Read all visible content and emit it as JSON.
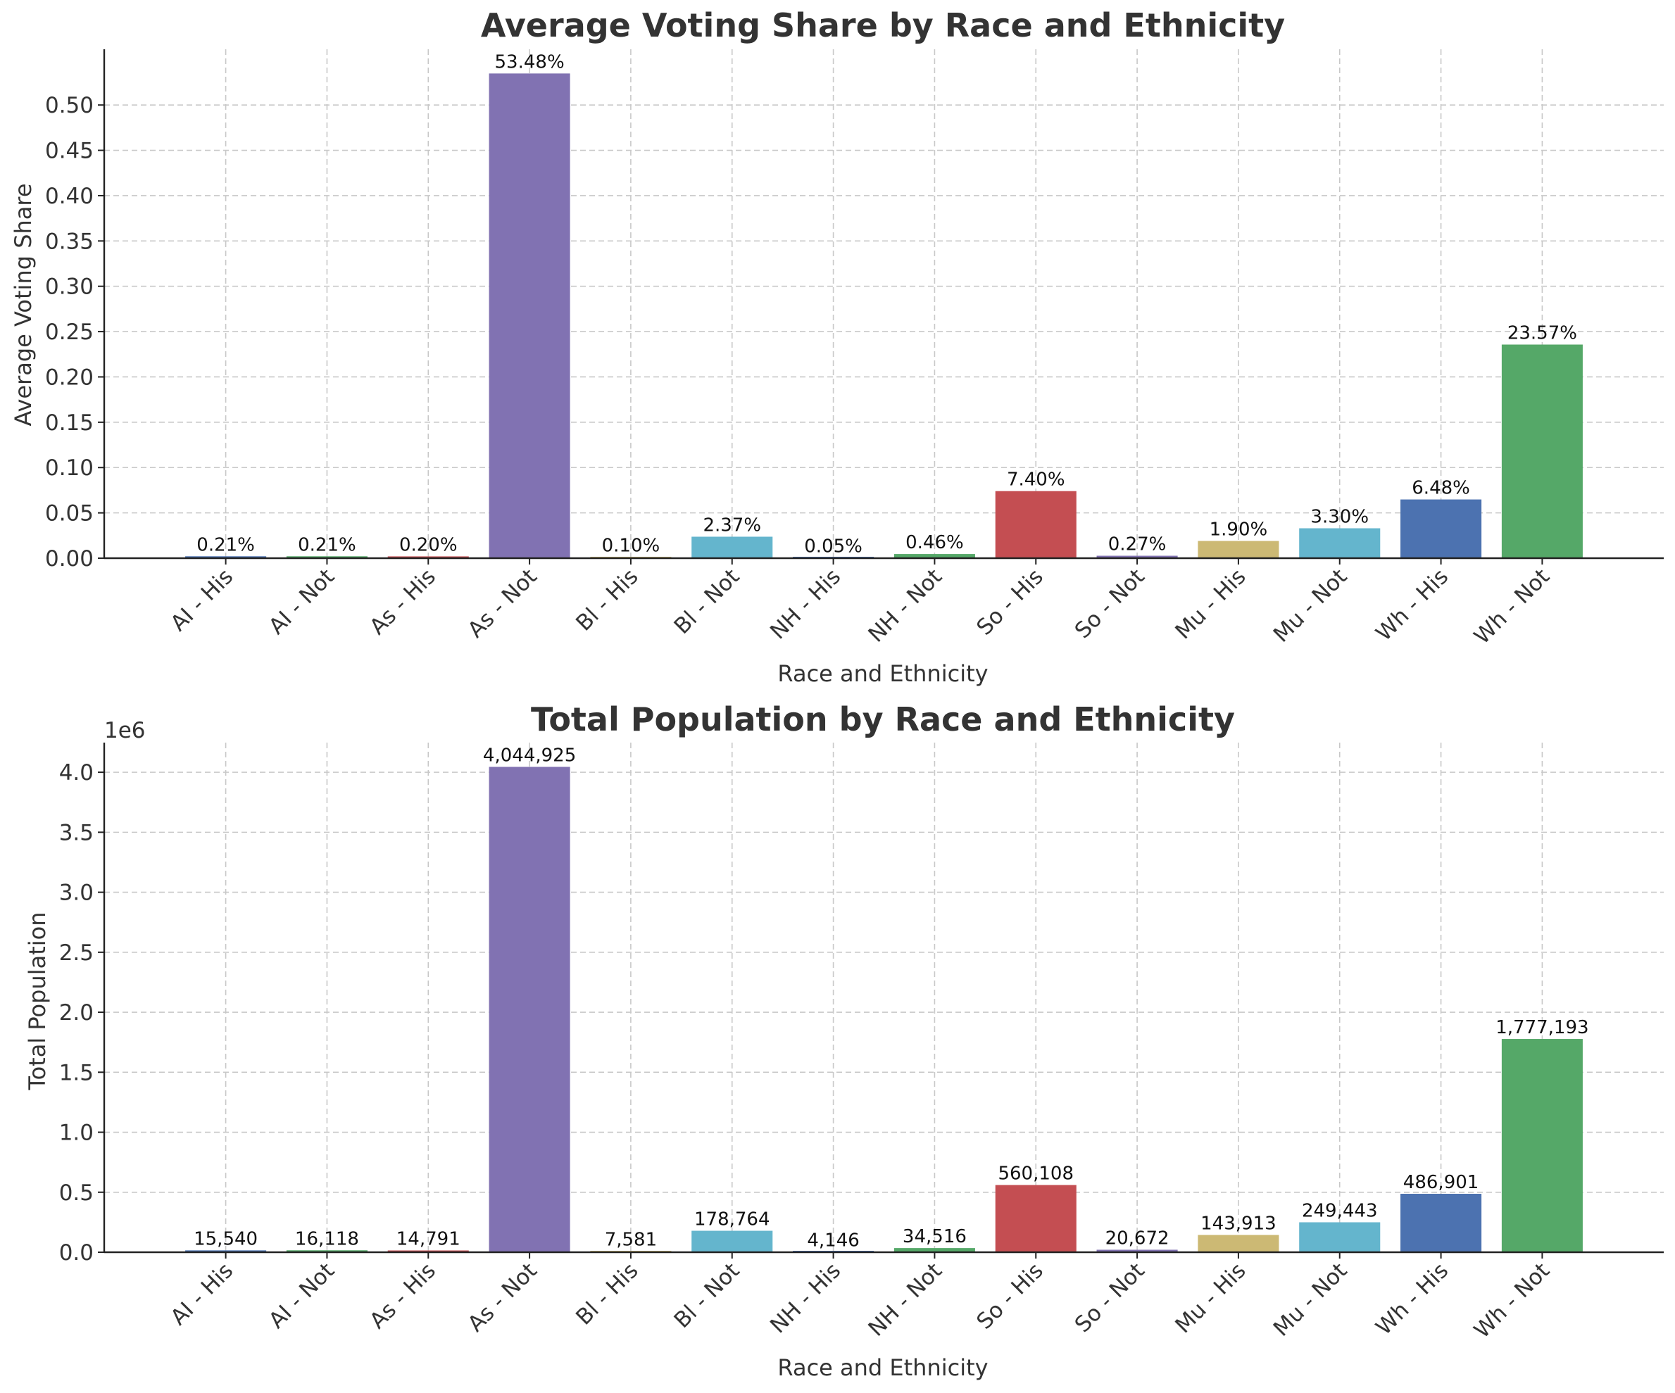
{
  "chart_data": [
    {
      "type": "bar",
      "title": "Average Voting Share by Race and Ethnicity",
      "xlabel": "Race and Ethnicity",
      "ylabel": "Average Voting Share",
      "categories": [
        "AI - His",
        "AI - Not",
        "As - His",
        "As - Not",
        "Bl - His",
        "Bl - Not",
        "NH - His",
        "NH - Not",
        "So - His",
        "So - Not",
        "Mu - His",
        "Mu - Not",
        "Wh - His",
        "Wh - Not"
      ],
      "values": [
        0.0021,
        0.0021,
        0.002,
        0.5348,
        0.001,
        0.0237,
        0.0005,
        0.0046,
        0.074,
        0.0027,
        0.019,
        0.033,
        0.0648,
        0.2357
      ],
      "data_labels": [
        "0.21%",
        "0.21%",
        "0.20%",
        "53.48%",
        "0.10%",
        "2.37%",
        "0.05%",
        "0.46%",
        "7.40%",
        "0.27%",
        "1.90%",
        "3.30%",
        "6.48%",
        "23.57%"
      ],
      "ylim": [
        0,
        0.5615
      ],
      "yticks": [
        0.0,
        0.05,
        0.1,
        0.15,
        0.2,
        0.25,
        0.3,
        0.35,
        0.4,
        0.45,
        0.5
      ],
      "ytick_labels": [
        "0.00",
        "0.05",
        "0.10",
        "0.15",
        "0.20",
        "0.25",
        "0.30",
        "0.35",
        "0.40",
        "0.45",
        "0.50"
      ],
      "grid": true
    },
    {
      "type": "bar",
      "title": "Total Population by Race and Ethnicity",
      "xlabel": "Race and Ethnicity",
      "ylabel": "Total Population",
      "y_multiplier_label": "1e6",
      "categories": [
        "AI - His",
        "AI - Not",
        "As - His",
        "As - Not",
        "Bl - His",
        "Bl - Not",
        "NH - His",
        "NH - Not",
        "So - His",
        "So - Not",
        "Mu - His",
        "Mu - Not",
        "Wh - His",
        "Wh - Not"
      ],
      "values": [
        15540,
        16118,
        14791,
        4044925,
        7581,
        178764,
        4146,
        34516,
        560108,
        20672,
        143913,
        249443,
        486901,
        1777193
      ],
      "data_labels": [
        "15,540",
        "16,118",
        "14,791",
        "4,044,925",
        "7,581",
        "178,764",
        "4,146",
        "34,516",
        "560,108",
        "20,672",
        "143,913",
        "249,443",
        "486,901",
        "1,777,193"
      ],
      "ylim": [
        0,
        4247171
      ],
      "yticks": [
        0,
        500000,
        1000000,
        1500000,
        2000000,
        2500000,
        3000000,
        3500000,
        4000000
      ],
      "ytick_labels": [
        "0.0",
        "0.5",
        "1.0",
        "1.5",
        "2.0",
        "2.5",
        "3.0",
        "3.5",
        "4.0"
      ],
      "grid": true
    }
  ],
  "colors": [
    "#4c72b0",
    "#55a868",
    "#c44e52",
    "#8172b2",
    "#ccb974",
    "#64b5cd",
    "#4c72b0",
    "#55a868",
    "#c44e52",
    "#8172b2",
    "#ccb974",
    "#64b5cd",
    "#4c72b0",
    "#55a868"
  ]
}
